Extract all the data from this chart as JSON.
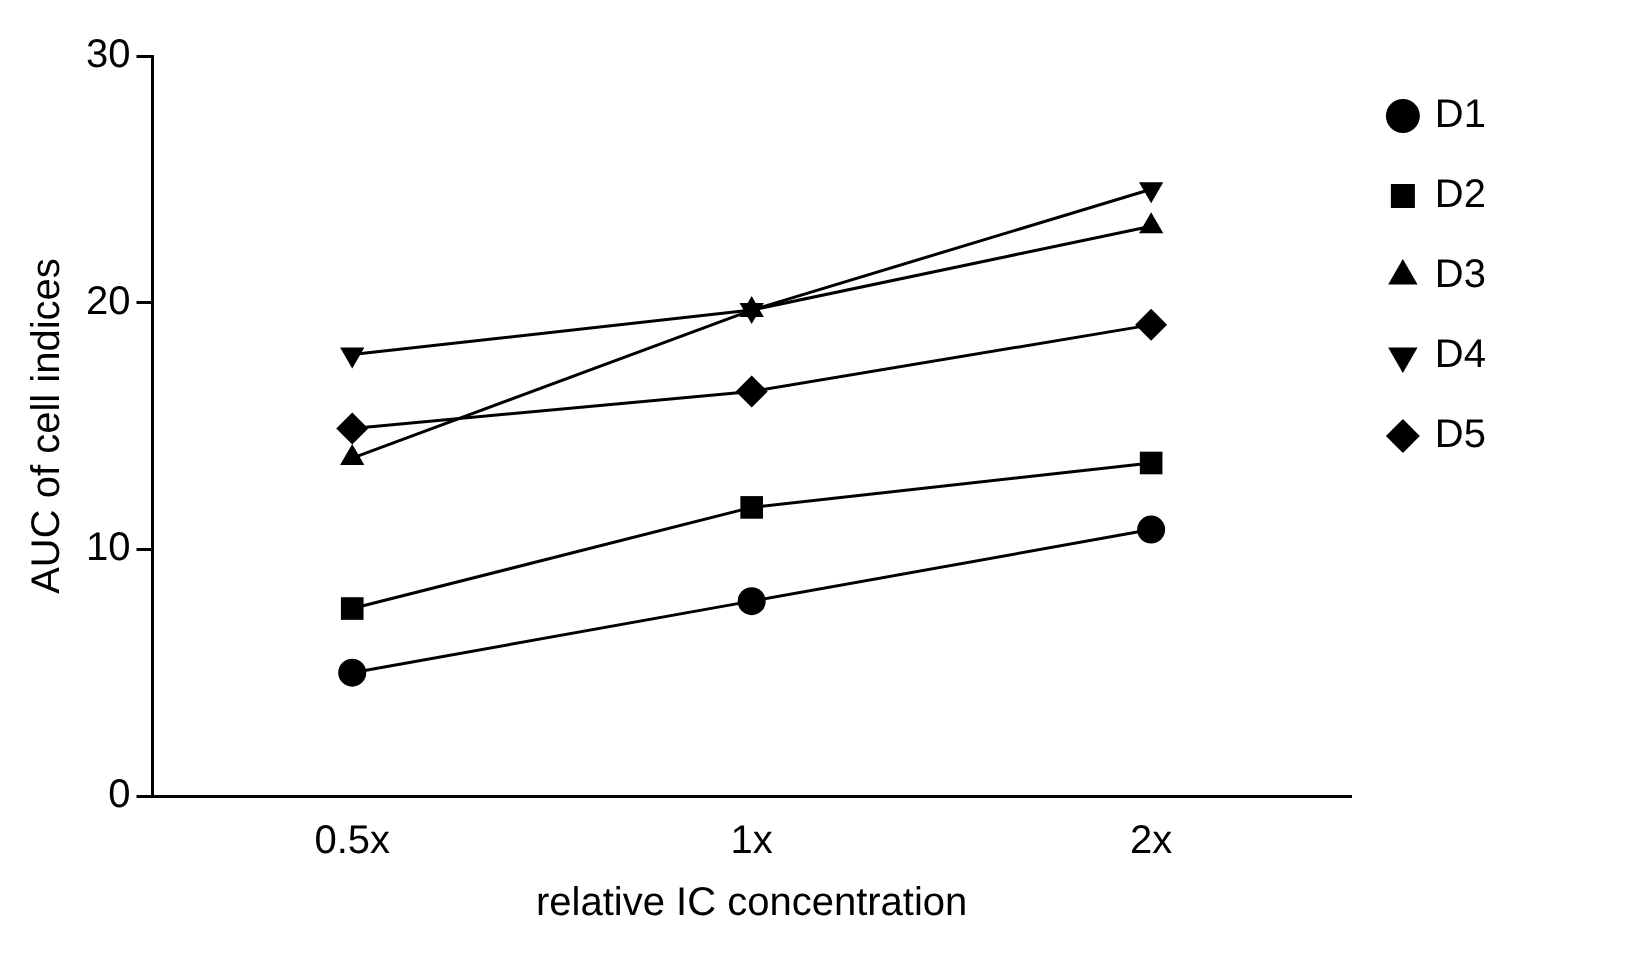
{
  "chart_data": {
    "type": "line",
    "xlabel": "relative IC concentration",
    "ylabel": "AUC of cell indices",
    "categories": [
      "0.5x",
      "1x",
      "2x"
    ],
    "series": [
      {
        "name": "D1",
        "color": "#000000",
        "marker": "circle",
        "values": [
          5.0,
          7.9,
          10.8
        ]
      },
      {
        "name": "D2",
        "color": "#000000",
        "marker": "square",
        "values": [
          7.6,
          11.7,
          13.5
        ]
      },
      {
        "name": "D3",
        "color": "#000000",
        "marker": "triangle",
        "values": [
          13.7,
          19.7,
          23.1
        ]
      },
      {
        "name": "D4",
        "color": "#000000",
        "marker": "triangle-down",
        "values": [
          17.9,
          19.7,
          24.6
        ]
      },
      {
        "name": "D5",
        "color": "#000000",
        "marker": "diamond",
        "values": [
          14.9,
          16.4,
          19.1
        ]
      }
    ],
    "ylim": [
      0,
      30
    ],
    "yticks": [
      0,
      10,
      20,
      30
    ],
    "grid": false,
    "legend": "right",
    "line_style": "solid"
  }
}
